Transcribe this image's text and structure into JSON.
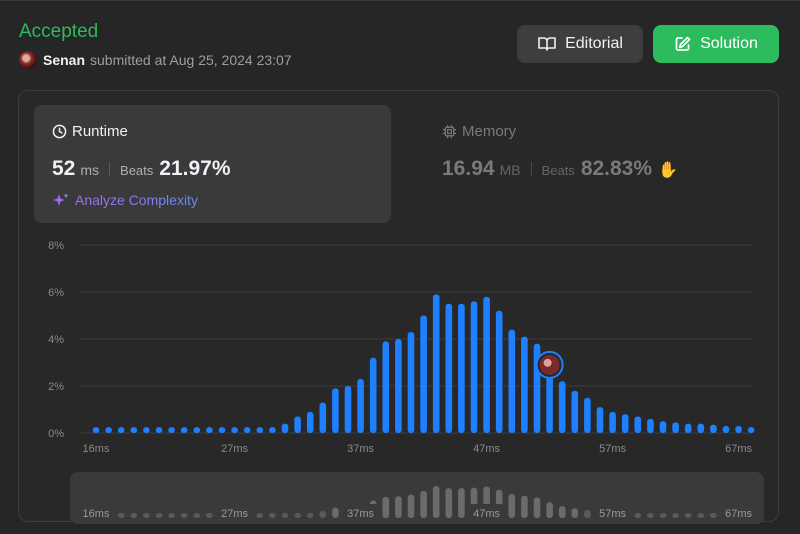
{
  "header": {
    "status": "Accepted",
    "user": "Senan",
    "submitted_text": "submitted at Aug 25, 2024 23:07",
    "editorial_label": "Editorial",
    "solution_label": "Solution"
  },
  "runtime": {
    "title": "Runtime",
    "value": "52",
    "unit": "ms",
    "beats_label": "Beats",
    "beats_value": "21.97%",
    "analyze_label": "Analyze Complexity"
  },
  "memory": {
    "title": "Memory",
    "value": "16.94",
    "unit": "MB",
    "beats_label": "Beats",
    "beats_value": "82.83%"
  },
  "colors": {
    "accepted": "#2cbb5d",
    "bar": "#1e80ff",
    "bar_faded": "#5a5a5a",
    "nav_bar_highlight": "#6b6b6b"
  },
  "chart_data": {
    "type": "bar",
    "xlabel": "",
    "ylabel": "",
    "ylim": [
      0,
      8
    ],
    "y_unit": "%",
    "y_ticks": [
      "0%",
      "2%",
      "4%",
      "6%",
      "8%"
    ],
    "x_tick_labels": [
      "16ms",
      "27ms",
      "37ms",
      "47ms",
      "57ms",
      "67ms"
    ],
    "categories": [
      "16",
      "17",
      "18",
      "19",
      "20",
      "21",
      "22",
      "23",
      "24",
      "25",
      "26",
      "27",
      "28",
      "29",
      "30",
      "31",
      "32",
      "33",
      "34",
      "35",
      "36",
      "37",
      "38",
      "39",
      "40",
      "41",
      "42",
      "43",
      "44",
      "45",
      "46",
      "47",
      "48",
      "49",
      "50",
      "51",
      "52",
      "53",
      "54",
      "55",
      "56",
      "57",
      "58",
      "59",
      "60",
      "61",
      "62",
      "63",
      "64",
      "65",
      "66",
      "67",
      "68"
    ],
    "values": [
      0.25,
      0.25,
      0.25,
      0.25,
      0.25,
      0.25,
      0.25,
      0.25,
      0.25,
      0.25,
      0.25,
      0.25,
      0.25,
      0.25,
      0.25,
      0.4,
      0.7,
      0.9,
      1.3,
      1.9,
      2.0,
      2.3,
      3.2,
      3.9,
      4.0,
      4.3,
      5.0,
      5.9,
      5.5,
      5.5,
      5.6,
      5.8,
      5.2,
      4.4,
      4.1,
      3.8,
      2.9,
      2.2,
      1.8,
      1.5,
      1.1,
      0.9,
      0.8,
      0.7,
      0.6,
      0.5,
      0.45,
      0.4,
      0.4,
      0.35,
      0.3,
      0.3,
      0.25
    ],
    "user_marker_category": "52",
    "grid": true
  }
}
